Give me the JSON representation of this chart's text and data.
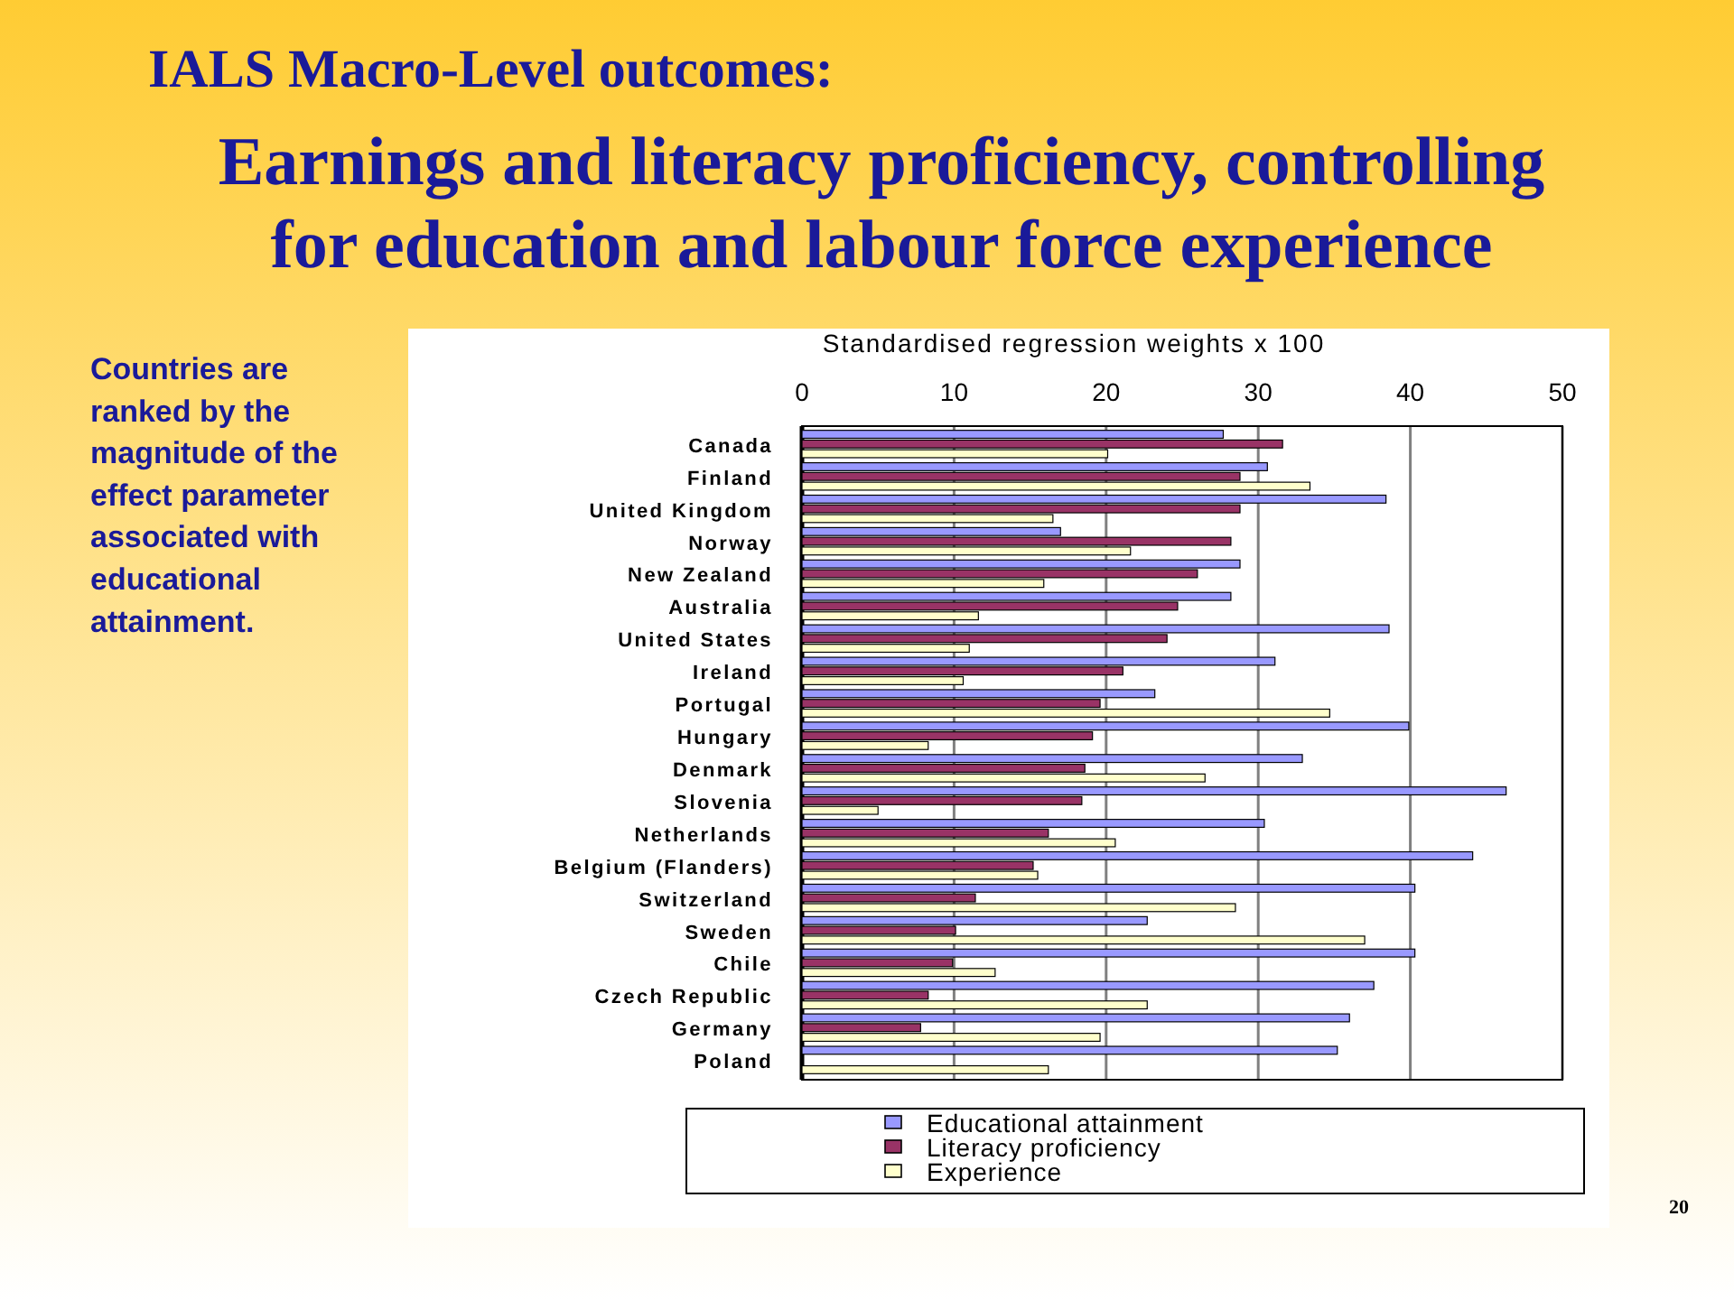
{
  "chart_data": {
    "type": "bar",
    "orientation": "horizontal",
    "title": "IALS Macro-Level outcomes:",
    "subtitle": "Earnings and literacy proficiency, controlling for education and labour force experience",
    "xlabel": "Standardised regression weights x 100",
    "categories": [
      "Canada",
      "Finland",
      "United Kingdom",
      "Norway",
      "New Zealand",
      "Australia",
      "United States",
      "Ireland",
      "Portugal",
      "Hungary",
      "Denmark",
      "Slovenia",
      "Netherlands",
      "Belgium (Flanders)",
      "Switzerland",
      "Sweden",
      "Chile",
      "Czech Republic",
      "Germany",
      "Poland"
    ],
    "series": [
      {
        "name": "Educational attainment",
        "color": "#9999ff",
        "values": [
          27.7,
          30.6,
          38.4,
          17.0,
          28.8,
          28.2,
          38.6,
          31.1,
          23.2,
          39.9,
          32.9,
          46.3,
          30.4,
          44.1,
          40.3,
          22.7,
          40.3,
          37.6,
          36.0,
          35.2
        ]
      },
      {
        "name": "Literacy proficiency",
        "color": "#993366",
        "values": [
          31.6,
          28.8,
          28.8,
          28.2,
          26.0,
          24.7,
          24.0,
          21.1,
          19.6,
          19.1,
          18.6,
          18.4,
          16.2,
          15.2,
          11.4,
          10.1,
          9.9,
          8.3,
          7.8,
          null
        ]
      },
      {
        "name": "Experience",
        "color": "#ffffcc",
        "values": [
          20.1,
          33.4,
          16.5,
          21.6,
          15.9,
          11.6,
          11.0,
          10.6,
          34.7,
          8.3,
          26.5,
          5.0,
          20.6,
          15.5,
          28.5,
          37.0,
          12.7,
          22.7,
          19.6,
          16.2
        ]
      }
    ],
    "xlim": [
      0,
      50
    ],
    "xticks": [
      0,
      10,
      20,
      30,
      40,
      50
    ],
    "grid": "x",
    "legend": "bottom",
    "annotations": [
      "Countries are ranked by the magnitude of the effect parameter associated with educational attainment.",
      "20"
    ]
  }
}
